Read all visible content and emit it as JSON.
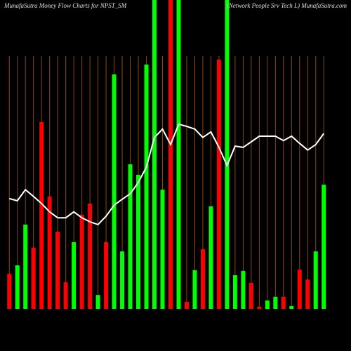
{
  "chart_data": {
    "type": "bar",
    "title": "MunafaSutra  Money Flow  Charts for NPST_SM",
    "subtitle": "(Network People    Srv    Tech L) MunafaSutra.com",
    "background": "#000000",
    "grid": true,
    "grid_color": "#8a4a0a",
    "ylim": [
      0,
      100
    ],
    "values": [
      11.4,
      14.1,
      27.3,
      19.8,
      60.5,
      36.4,
      25.0,
      8.6,
      21.6,
      30.5,
      34.1,
      4.5,
      21.6,
      75.9,
      18.6,
      46.8,
      43.4,
      79.1,
      100,
      38.6,
      100,
      100,
      2.3,
      12.5,
      19.3,
      33.2,
      80.7,
      100,
      10.9,
      12.3,
      8.4,
      0.7,
      2.7,
      3.9,
      3.9,
      0.9,
      12.7,
      9.5,
      18.6,
      40.2
    ],
    "colors": [
      "#ff0000",
      "#00ff00",
      "#00ff00",
      "#ff0000",
      "#ff0000",
      "#ff0000",
      "#ff0000",
      "#ff0000",
      "#00ff00",
      "#ff0000",
      "#ff0000",
      "#00ff00",
      "#ff0000",
      "#00ff00",
      "#00ff00",
      "#00ff00",
      "#00ff00",
      "#00ff00",
      "#00ff00",
      "#00ff00",
      "#ff0000",
      "#00ff00",
      "#ff0000",
      "#00ff00",
      "#ff0000",
      "#00ff00",
      "#ff0000",
      "#00ff00",
      "#00ff00",
      "#00ff00",
      "#ff0000",
      "#ff0000",
      "#00ff00",
      "#00ff00",
      "#ff0000",
      "#00ff00",
      "#ff0000",
      "#ff0000",
      "#00ff00",
      "#00ff00"
    ],
    "line_color": "#ffffff",
    "line_values": [
      35.7,
      35.0,
      38.6,
      36.4,
      34.1,
      31.4,
      29.5,
      29.5,
      31.4,
      29.5,
      28.2,
      27.3,
      30.0,
      33.6,
      35.5,
      37.3,
      40.9,
      45.9,
      55.5,
      58.2,
      53.2,
      59.8,
      59.1,
      58.2,
      55.5,
      57.3,
      52.3,
      46.4,
      52.7,
      52.3,
      54.1,
      55.9,
      55.9,
      55.9,
      54.5,
      55.9,
      53.6,
      51.4,
      53.2,
      56.8
    ]
  }
}
